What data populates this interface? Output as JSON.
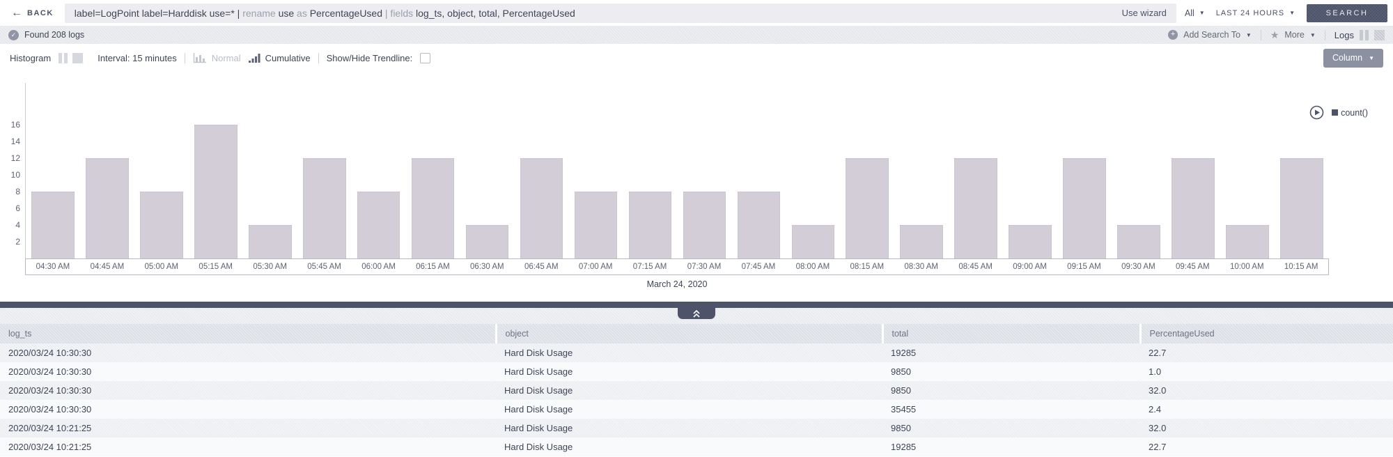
{
  "top_bar": {
    "back_label": "BACK",
    "query_segments": [
      {
        "text": "label=LogPoint label=Harddisk use=* | ",
        "muted": false
      },
      {
        "text": "rename ",
        "muted": true
      },
      {
        "text": "use ",
        "muted": false
      },
      {
        "text": "as ",
        "muted": true
      },
      {
        "text": "PercentageUsed ",
        "muted": false
      },
      {
        "text": "| fields ",
        "muted": true
      },
      {
        "text": "log_ts, object, total, PercentageUsed",
        "muted": false
      }
    ],
    "use_wizard_label": "Use wizard",
    "scope_dropdown": "All",
    "time_range_dropdown": "LAST 24 HOURS",
    "search_button": "SEARCH"
  },
  "status_bar": {
    "found_text": "Found 208 logs",
    "add_search_to_label": "Add Search To",
    "more_label": "More",
    "logs_label": "Logs"
  },
  "chart_toolbar": {
    "histogram_label": "Histogram",
    "interval_label": "Interval: 15 minutes",
    "normal_label": "Normal",
    "cumulative_label": "Cumulative",
    "trendline_label": "Show/Hide Trendline:",
    "trendline_checked": false,
    "column_button": "Column"
  },
  "chart_data": {
    "type": "bar",
    "title": "",
    "x": [
      "04:30 AM",
      "04:45 AM",
      "05:00 AM",
      "05:15 AM",
      "05:30 AM",
      "05:45 AM",
      "06:00 AM",
      "06:15 AM",
      "06:30 AM",
      "06:45 AM",
      "07:00 AM",
      "07:15 AM",
      "07:30 AM",
      "07:45 AM",
      "08:00 AM",
      "08:15 AM",
      "08:30 AM",
      "08:45 AM",
      "09:00 AM",
      "09:15 AM",
      "09:30 AM",
      "09:45 AM",
      "10:00 AM",
      "10:15 AM"
    ],
    "series": [
      {
        "name": "count()",
        "values": [
          8,
          12,
          8,
          16,
          4,
          12,
          8,
          12,
          4,
          12,
          8,
          8,
          8,
          8,
          4,
          12,
          4,
          12,
          4,
          12,
          4,
          12,
          4,
          12
        ]
      }
    ],
    "xlabel": "March 24, 2020",
    "ylabel": "",
    "ylim": [
      0,
      17
    ],
    "yticks": [
      2,
      4,
      6,
      8,
      10,
      12,
      14,
      16
    ],
    "grid": false,
    "legend_position": "top-right",
    "bar_color": "#d3cdd8"
  },
  "divider": {
    "collapse_icon": "double-chevron-up"
  },
  "table": {
    "columns": [
      "log_ts",
      "object",
      "total",
      "PercentageUsed"
    ],
    "rows": [
      [
        "2020/03/24 10:30:30",
        "Hard Disk Usage",
        "19285",
        "22.7"
      ],
      [
        "2020/03/24 10:30:30",
        "Hard Disk Usage",
        "9850",
        "1.0"
      ],
      [
        "2020/03/24 10:30:30",
        "Hard Disk Usage",
        "9850",
        "32.0"
      ],
      [
        "2020/03/24 10:30:30",
        "Hard Disk Usage",
        "35455",
        "2.4"
      ],
      [
        "2020/03/24 10:21:25",
        "Hard Disk Usage",
        "9850",
        "32.0"
      ],
      [
        "2020/03/24 10:21:25",
        "Hard Disk Usage",
        "19285",
        "22.7"
      ]
    ]
  },
  "colors": {
    "accent_navy": "#4d5369",
    "bar_fill": "#d3cdd8",
    "muted_text": "#9ba0ae",
    "status_bar_bg": "#e7e8ec",
    "table_header_bg": "#dde0e6"
  }
}
